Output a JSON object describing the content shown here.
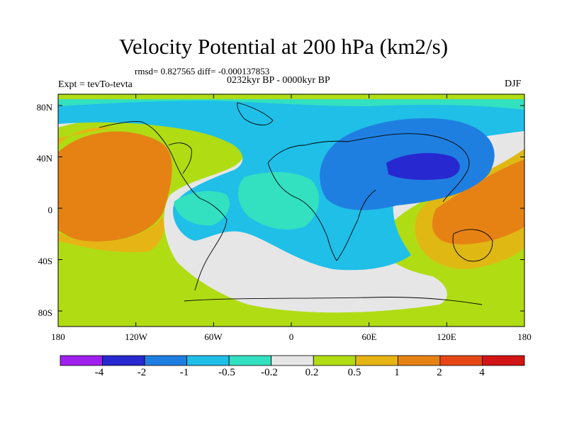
{
  "title": "Velocity Potential at 200 hPa (km2/s)",
  "stats": "rmsd= 0.827565  diff= -0.000137853",
  "period": "0232kyr BP - 0000kyr BP",
  "experiment": "Expt = tevTo-tevta",
  "season": "DJF",
  "lat_labels": [
    "80N",
    "40N",
    "0",
    "40S",
    "80S"
  ],
  "lon_labels": [
    "180",
    "120W",
    "60W",
    "0",
    "60E",
    "120E",
    "180"
  ],
  "colorbar": {
    "labels": [
      "-4",
      "-2",
      "-1",
      "-0.5",
      "-0.2",
      "0.2",
      "0.5",
      "1",
      "2",
      "4"
    ],
    "colors": [
      "#a020f0",
      "#2828d0",
      "#1f7fe0",
      "#1fbfe8",
      "#33e0c0",
      "#e6e6e6",
      "#b0dc14",
      "#e6b414",
      "#e68214",
      "#e64614",
      "#d21414"
    ]
  }
}
